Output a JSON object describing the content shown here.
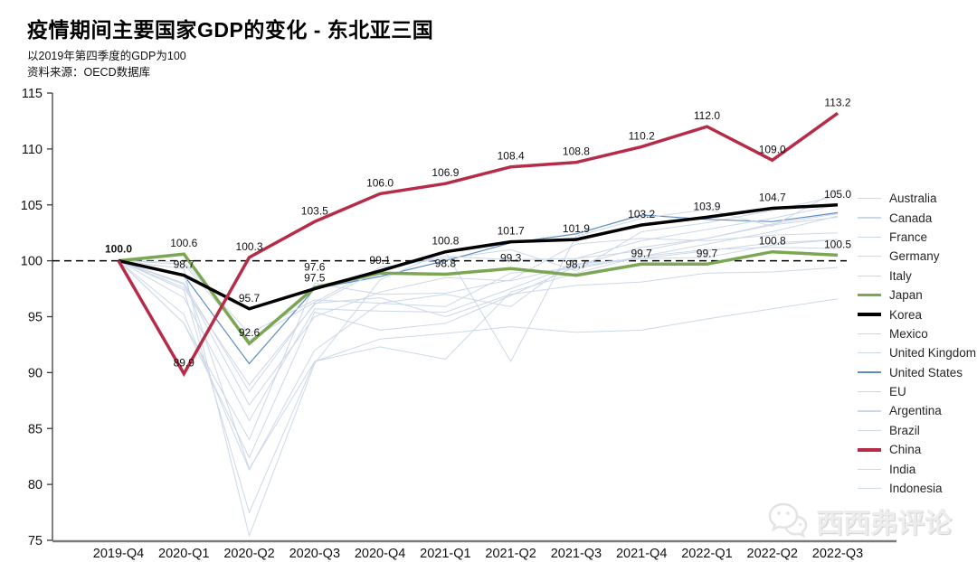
{
  "header": {
    "title": "疫情期间主要国家GDP的变化 - 东北亚三国",
    "subtitle": "以2019年第四季度的GDP为100",
    "source": "资料来源：OECD数据库"
  },
  "watermark": {
    "text": "西西弗评论",
    "icon": "wechat-icon"
  },
  "chart_data": {
    "type": "line",
    "title": "疫情期间主要国家GDP的变化 - 东北亚三国",
    "subtitle": "以2019年第四季度的GDP为100",
    "source": "资料来源：OECD数据库",
    "xlabel": "",
    "ylabel": "",
    "x_categories": [
      "2019-Q4",
      "2020-Q1",
      "2020-Q2",
      "2020-Q3",
      "2020-Q4",
      "2021-Q1",
      "2021-Q2",
      "2021-Q3",
      "2021-Q4",
      "2022-Q1",
      "2022-Q2",
      "2022-Q3"
    ],
    "ylim": [
      75,
      115
    ],
    "yticks": [
      75,
      80,
      85,
      90,
      95,
      100,
      105,
      110,
      115
    ],
    "baseline": 100,
    "baseline_style": "dashed",
    "grid": false,
    "legend_position": "right",
    "colors": {
      "china": "#b62c48",
      "japan": "#7ba653",
      "korea": "#000000",
      "united_states": "#5d8cc4",
      "background": "#ccd8e8"
    },
    "series": [
      {
        "name": "Australia",
        "color": "#ccd8e8",
        "width": 1,
        "emphasis": false,
        "values": [
          100,
          99.7,
          92.9,
          96.3,
          99.4,
          100.2,
          101.0,
          99.1,
          102.6,
          103.4,
          104.5,
          105.8
        ]
      },
      {
        "name": "Canada",
        "color": "#ccd8e8",
        "width": 1,
        "emphasis": false,
        "values": [
          100,
          97.9,
          87.1,
          95.0,
          97.2,
          98.5,
          98.2,
          99.6,
          101.2,
          102.0,
          103.2,
          103.9
        ]
      },
      {
        "name": "France",
        "color": "#ccd8e8",
        "width": 1,
        "emphasis": false,
        "values": [
          100,
          94.4,
          84.0,
          98.0,
          97.0,
          97.1,
          98.3,
          101.5,
          102.0,
          101.8,
          102.3,
          102.5
        ]
      },
      {
        "name": "Germany",
        "color": "#ccd8e8",
        "width": 1,
        "emphasis": false,
        "values": [
          100,
          98.0,
          88.3,
          96.2,
          96.7,
          95.0,
          97.0,
          97.8,
          98.1,
          98.9,
          99.0,
          99.4
        ]
      },
      {
        "name": "Italy",
        "color": "#ccd8e8",
        "width": 1,
        "emphasis": false,
        "values": [
          100,
          94.4,
          82.4,
          95.4,
          93.8,
          94.4,
          96.9,
          99.5,
          100.2,
          100.3,
          101.4,
          101.9
        ]
      },
      {
        "name": "Japan",
        "color": "#7ba653",
        "width": 3.5,
        "emphasis": true,
        "values": [
          100,
          100.6,
          92.6,
          97.6,
          98.9,
          98.8,
          99.3,
          98.7,
          99.7,
          99.7,
          100.8,
          100.5
        ],
        "labels": [
          null,
          "100.6",
          "92.6",
          "97.6",
          null,
          "98.8",
          "99.3",
          "98.7",
          "99.7",
          "99.7",
          "100.8",
          "100.5"
        ]
      },
      {
        "name": "Korea",
        "color": "#000000",
        "width": 3.5,
        "emphasis": true,
        "values": [
          100,
          98.7,
          95.7,
          97.5,
          99.1,
          100.8,
          101.7,
          101.9,
          103.2,
          103.9,
          104.7,
          105.0
        ],
        "labels": [
          "100.0",
          "98.7",
          "95.7",
          "97.5",
          "99.1",
          "100.8",
          "101.7",
          "101.9",
          "103.2",
          "103.9",
          "104.7",
          "105.0"
        ]
      },
      {
        "name": "Mexico",
        "color": "#ccd8e8",
        "width": 1,
        "emphasis": false,
        "values": [
          100,
          98.7,
          81.4,
          91.0,
          93.0,
          93.5,
          94.1,
          93.6,
          93.8,
          94.8,
          95.7,
          96.6
        ]
      },
      {
        "name": "United Kingdom",
        "color": "#ccd8e8",
        "width": 1,
        "emphasis": false,
        "values": [
          100,
          97.4,
          77.5,
          91.0,
          92.3,
          91.2,
          97.2,
          98.9,
          100.4,
          101.0,
          101.2,
          101.1
        ]
      },
      {
        "name": "United States",
        "color": "#5d8cc4",
        "width": 1.2,
        "emphasis": false,
        "values": [
          100,
          98.7,
          90.8,
          97.5,
          98.6,
          100.0,
          101.6,
          102.4,
          104.1,
          103.7,
          103.5,
          104.3
        ]
      },
      {
        "name": "EU",
        "color": "#ccd8e8",
        "width": 1,
        "emphasis": false,
        "values": [
          100,
          96.7,
          85.7,
          95.7,
          95.5,
          95.4,
          97.5,
          99.7,
          100.2,
          100.9,
          101.6,
          101.9
        ]
      },
      {
        "name": "Argentina",
        "color": "#ccd8e8",
        "width": 1,
        "emphasis": false,
        "values": [
          100,
          95.2,
          81.3,
          92.0,
          96.2,
          97.0,
          95.9,
          100.2,
          101.8,
          102.8,
          103.8,
          105.0
        ]
      },
      {
        "name": "Brazil",
        "color": "#ccd8e8",
        "width": 1,
        "emphasis": false,
        "values": [
          100,
          97.6,
          88.9,
          96.1,
          99.2,
          100.4,
          100.1,
          100.2,
          100.9,
          102.0,
          103.3,
          104.2
        ]
      },
      {
        "name": "China",
        "color": "#b62c48",
        "width": 3.5,
        "emphasis": true,
        "values": [
          100,
          89.9,
          100.3,
          103.5,
          106.0,
          106.9,
          108.4,
          108.8,
          110.2,
          112.0,
          109.0,
          113.2
        ],
        "labels": [
          null,
          "89.9",
          "100.3",
          "103.5",
          "106.0",
          "106.9",
          "108.4",
          "108.8",
          "110.2",
          "112.0",
          "109.0",
          "113.2"
        ]
      },
      {
        "name": "India",
        "color": "#ccd8e8",
        "width": 1,
        "emphasis": false,
        "values": [
          100,
          99.3,
          75.4,
          90.8,
          98.3,
          100.8,
          91.0,
          102.2,
          103.8,
          104.6,
          103.1,
          106.3
        ]
      },
      {
        "name": "Indonesia",
        "color": "#ccd8e8",
        "width": 1,
        "emphasis": false,
        "values": [
          100,
          99.9,
          93.5,
          96.5,
          96.2,
          95.9,
          98.9,
          99.3,
          100.4,
          101.5,
          102.6,
          104.0
        ]
      }
    ]
  }
}
